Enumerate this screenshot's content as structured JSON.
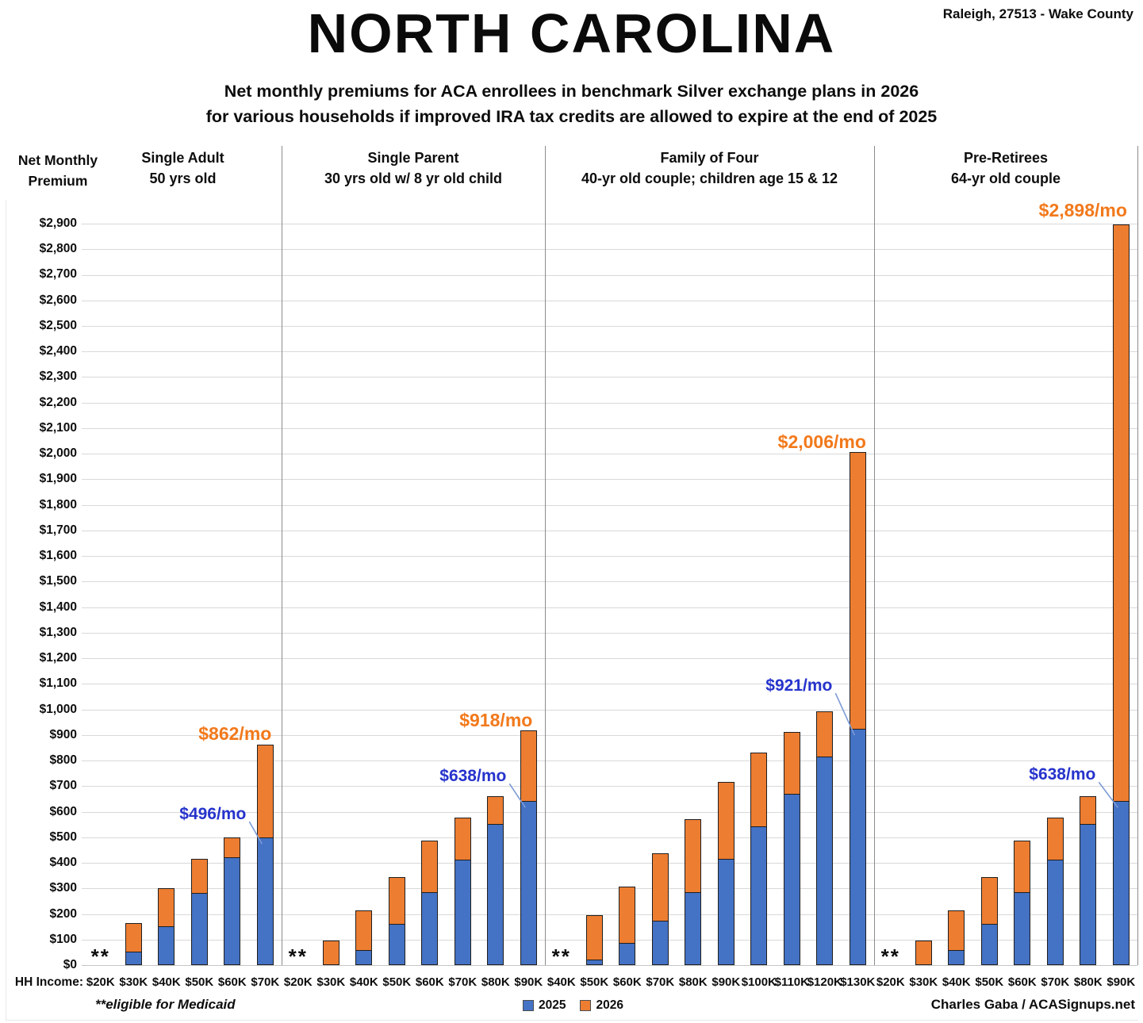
{
  "header": {
    "location": "Raleigh, 27513 - Wake County",
    "title": "NORTH CAROLINA",
    "subtitle_line1": "Net monthly premiums for ACA enrollees in benchmark Silver exchange plans in 2026",
    "subtitle_line2": "for various households if improved IRA tax credits are allowed to expire at the end of 2025"
  },
  "y_axis_title_line1": "Net Monthly",
  "y_axis_title_line2": "Premium",
  "x_axis_label": "HH Income:",
  "footnote": "**eligible for Medicaid",
  "credit": "Charles Gaba / ACASignups.net",
  "legend": {
    "items": [
      {
        "label": "2025",
        "color": "#4472C4"
      },
      {
        "label": "2026",
        "color": "#ED7D31"
      }
    ]
  },
  "colors": {
    "bar_2025": "#4472C4",
    "bar_2026": "#ED7D31",
    "annotation_2026": "#F2791B",
    "annotation_2025": "#2633CC",
    "pointer_line": "#7C9AD6"
  },
  "chart_data": {
    "type": "bar",
    "stacked": true,
    "y_axis": {
      "min": 0,
      "max": 2900,
      "step": 100,
      "tick_prefix": "$"
    },
    "medicaid_marker": "**",
    "series_names": [
      "2025",
      "2026"
    ],
    "groups": [
      {
        "name": "Single Adult",
        "name2": "50 yrs old",
        "columns": [
          {
            "income": "$20K",
            "medicaid": true
          },
          {
            "income": "$30K",
            "premium_2025": 50,
            "premium_2026": 165
          },
          {
            "income": "$40K",
            "premium_2025": 150,
            "premium_2026": 300
          },
          {
            "income": "$50K",
            "premium_2025": 280,
            "premium_2026": 415
          },
          {
            "income": "$60K",
            "premium_2025": 420,
            "premium_2026": 500
          },
          {
            "income": "$70K",
            "premium_2025": 496,
            "premium_2026": 862
          }
        ]
      },
      {
        "name": "Single Parent",
        "name2": "30 yrs old w/ 8 yr old child",
        "columns": [
          {
            "income": "$20K",
            "medicaid": true
          },
          {
            "income": "$30K",
            "premium_2025": 0,
            "premium_2026": 97
          },
          {
            "income": "$40K",
            "premium_2025": 55,
            "premium_2026": 213
          },
          {
            "income": "$50K",
            "premium_2025": 158,
            "premium_2026": 343
          },
          {
            "income": "$60K",
            "premium_2025": 283,
            "premium_2026": 488
          },
          {
            "income": "$70K",
            "premium_2025": 408,
            "premium_2026": 578
          },
          {
            "income": "$80K",
            "premium_2025": 549,
            "premium_2026": 660
          },
          {
            "income": "$90K",
            "premium_2025": 638,
            "premium_2026": 918
          }
        ]
      },
      {
        "name": "Family of Four",
        "name2": "40-yr old couple; children age 15 & 12",
        "columns": [
          {
            "income": "$40K",
            "medicaid": true
          },
          {
            "income": "$50K",
            "premium_2025": 18,
            "premium_2026": 195
          },
          {
            "income": "$60K",
            "premium_2025": 83,
            "premium_2026": 308
          },
          {
            "income": "$70K",
            "premium_2025": 172,
            "premium_2026": 437
          },
          {
            "income": "$80K",
            "premium_2025": 281,
            "premium_2026": 570
          },
          {
            "income": "$90K",
            "premium_2025": 414,
            "premium_2026": 718
          },
          {
            "income": "$100K",
            "premium_2025": 541,
            "premium_2026": 830
          },
          {
            "income": "$110K",
            "premium_2025": 667,
            "premium_2026": 913
          },
          {
            "income": "$120K",
            "premium_2025": 812,
            "premium_2026": 991
          },
          {
            "income": "$130K",
            "premium_2025": 921,
            "premium_2026": 2006
          }
        ]
      },
      {
        "name": "Pre-Retirees",
        "name2": "64-yr old couple",
        "columns": [
          {
            "income": "$20K",
            "medicaid": true
          },
          {
            "income": "$30K",
            "premium_2025": 0,
            "premium_2026": 97
          },
          {
            "income": "$40K",
            "premium_2025": 57,
            "premium_2026": 213
          },
          {
            "income": "$50K",
            "premium_2025": 158,
            "premium_2026": 343
          },
          {
            "income": "$60K",
            "premium_2025": 283,
            "premium_2026": 488
          },
          {
            "income": "$70K",
            "premium_2025": 408,
            "premium_2026": 578
          },
          {
            "income": "$80K",
            "premium_2025": 549,
            "premium_2026": 660
          },
          {
            "income": "$90K",
            "premium_2025": 638,
            "premium_2026": 2898
          }
        ]
      }
    ],
    "annotations": [
      {
        "text": "$496/mo",
        "series": "2025",
        "group": 0,
        "col": 5
      },
      {
        "text": "$862/mo",
        "series": "2026",
        "group": 0,
        "col": 5
      },
      {
        "text": "$638/mo",
        "series": "2025",
        "group": 1,
        "col": 7
      },
      {
        "text": "$918/mo",
        "series": "2026",
        "group": 1,
        "col": 7
      },
      {
        "text": "$921/mo",
        "series": "2025",
        "group": 2,
        "col": 9
      },
      {
        "text": "$2,006/mo",
        "series": "2026",
        "group": 2,
        "col": 9
      },
      {
        "text": "$638/mo",
        "series": "2025",
        "group": 3,
        "col": 7
      },
      {
        "text": "$2,898/mo",
        "series": "2026",
        "group": 3,
        "col": 7
      }
    ]
  }
}
